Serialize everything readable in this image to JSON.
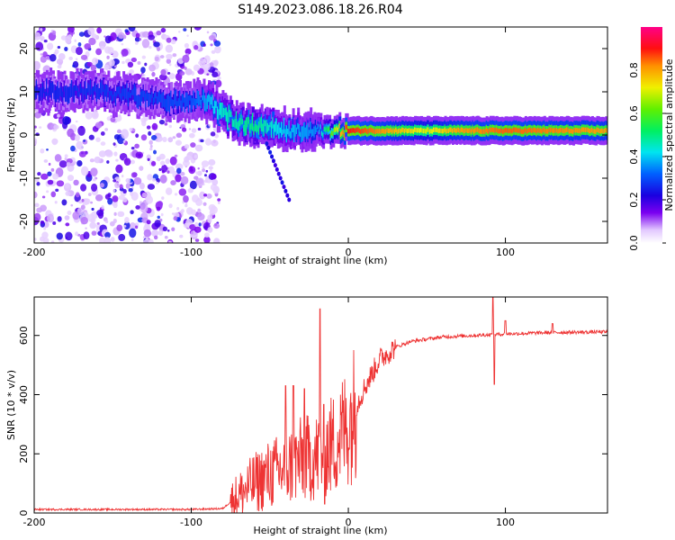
{
  "title": "S149.2023.086.18.26.R04",
  "chart_data": [
    {
      "type": "heatmap",
      "name": "spectrogram",
      "xlabel": "Height of straight line (km)",
      "ylabel": "Frequency (Hz)",
      "xlim": [
        -200,
        165
      ],
      "ylim": [
        -25,
        25
      ],
      "xticks": [
        -200,
        -100,
        0,
        100
      ],
      "yticks": [
        20,
        10,
        0,
        -10,
        -20
      ],
      "colorbar": {
        "label": "Normalized spectral amplitude",
        "range": [
          0,
          1
        ],
        "ticks": [
          "0.0",
          "0.2",
          "0.4",
          "0.6",
          "0.8"
        ],
        "tick_values": [
          0.0,
          0.2,
          0.4,
          0.6,
          0.8
        ]
      },
      "ridge_center_hz": [
        [
          -200,
          10
        ],
        [
          -180,
          10
        ],
        [
          -160,
          10
        ],
        [
          -140,
          9
        ],
        [
          -120,
          8
        ],
        [
          -100,
          8
        ],
        [
          -90,
          8
        ],
        [
          -80,
          5
        ],
        [
          -70,
          3
        ],
        [
          -60,
          2
        ],
        [
          -50,
          2
        ],
        [
          -40,
          1
        ],
        [
          -30,
          1
        ],
        [
          -20,
          1
        ],
        [
          -10,
          1
        ],
        [
          0,
          1
        ],
        [
          50,
          1
        ],
        [
          100,
          1
        ],
        [
          165,
          1
        ]
      ],
      "ridge_amplitude": [
        [
          -200,
          0.25
        ],
        [
          -100,
          0.3
        ],
        [
          -80,
          0.45
        ],
        [
          -60,
          0.5
        ],
        [
          -40,
          0.4
        ],
        [
          -20,
          0.35
        ],
        [
          0,
          0.9
        ],
        [
          50,
          0.7
        ],
        [
          70,
          0.8
        ],
        [
          100,
          0.85
        ],
        [
          165,
          0.8
        ]
      ],
      "noise_region_x": [
        -200,
        -85
      ]
    },
    {
      "type": "line",
      "name": "snr",
      "xlabel": "Height of straight line (km)",
      "ylabel": "SNR (10 * v/v)",
      "xlim": [
        -200,
        165
      ],
      "ylim": [
        0,
        730
      ],
      "xticks": [
        -200,
        -100,
        0,
        100
      ],
      "yticks": [
        0,
        200,
        400,
        600
      ],
      "color": "#ee3333",
      "trend": [
        [
          -200,
          12
        ],
        [
          -150,
          12
        ],
        [
          -100,
          12
        ],
        [
          -80,
          15
        ],
        [
          -70,
          60
        ],
        [
          -60,
          100
        ],
        [
          -50,
          130
        ],
        [
          -40,
          150
        ],
        [
          -30,
          180
        ],
        [
          -20,
          190
        ],
        [
          -10,
          230
        ],
        [
          0,
          300
        ],
        [
          10,
          420
        ],
        [
          20,
          520
        ],
        [
          30,
          560
        ],
        [
          40,
          580
        ],
        [
          60,
          595
        ],
        [
          80,
          600
        ],
        [
          100,
          605
        ],
        [
          130,
          610
        ],
        [
          165,
          612
        ]
      ],
      "spikes": [
        [
          -18,
          690
        ],
        [
          -15,
          30
        ],
        [
          -40,
          430
        ],
        [
          -35,
          430
        ],
        [
          -28,
          420
        ],
        [
          92,
          730
        ],
        [
          93,
          435
        ],
        [
          100,
          650
        ],
        [
          130,
          640
        ]
      ]
    }
  ]
}
